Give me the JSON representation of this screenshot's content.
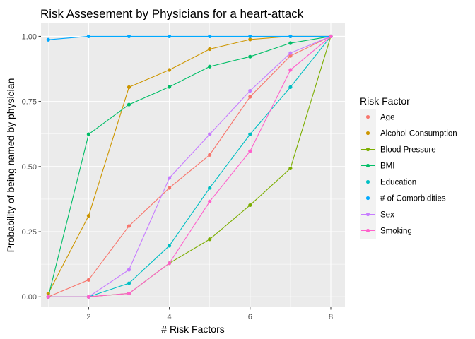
{
  "chart_data": {
    "type": "line",
    "title": "Risk Assesement by Physicians for a heart-attack",
    "xlabel": "# Risk Factors",
    "ylabel": "Probability of being named by physician",
    "xlim": [
      0.82,
      8.35
    ],
    "ylim": [
      -0.04,
      1.05
    ],
    "x_ticks": [
      2,
      4,
      6,
      8
    ],
    "x_tick_labels": [
      "2",
      "4",
      "6",
      "8"
    ],
    "y_ticks": [
      0,
      0.25,
      0.5,
      0.75,
      1.0
    ],
    "y_tick_labels": [
      "0.00",
      "0.25",
      "0.50",
      "0.75",
      "1.00"
    ],
    "grid": true,
    "legend": {
      "title": "Risk Factor",
      "position": "right"
    },
    "x": [
      1,
      2,
      3,
      4,
      5,
      6,
      7,
      8
    ],
    "series": [
      {
        "name": "Age",
        "color": "#F8766D",
        "values": [
          0.0,
          0.065,
          0.272,
          0.418,
          0.545,
          0.768,
          0.925,
          1.0
        ]
      },
      {
        "name": "Alcohol Consumption",
        "color": "#CD9600",
        "values": [
          0.013,
          0.311,
          0.805,
          0.871,
          0.951,
          0.988,
          1.0,
          1.0
        ]
      },
      {
        "name": "Blood Pressure",
        "color": "#7CAE00",
        "values": [
          0.0,
          0.0,
          0.013,
          0.129,
          0.221,
          0.352,
          0.493,
          1.0
        ]
      },
      {
        "name": "BMI",
        "color": "#00BE67",
        "values": [
          0.0,
          0.624,
          0.738,
          0.806,
          0.884,
          0.922,
          0.974,
          1.0
        ]
      },
      {
        "name": "Education",
        "color": "#00BFC4",
        "values": [
          0.0,
          0.0,
          0.052,
          0.196,
          0.418,
          0.624,
          0.805,
          1.0
        ]
      },
      {
        "name": "# of Comorbidities",
        "color": "#00A9FF",
        "values": [
          0.987,
          1.0,
          1.0,
          1.0,
          1.0,
          1.0,
          1.0,
          1.0
        ]
      },
      {
        "name": "Sex",
        "color": "#C77CFF",
        "values": [
          0.0,
          0.0,
          0.104,
          0.456,
          0.624,
          0.791,
          0.936,
          1.0
        ]
      },
      {
        "name": "Smoking",
        "color": "#FF61CC",
        "values": [
          0.0,
          0.0,
          0.013,
          0.129,
          0.366,
          0.559,
          0.871,
          1.0
        ]
      }
    ]
  }
}
